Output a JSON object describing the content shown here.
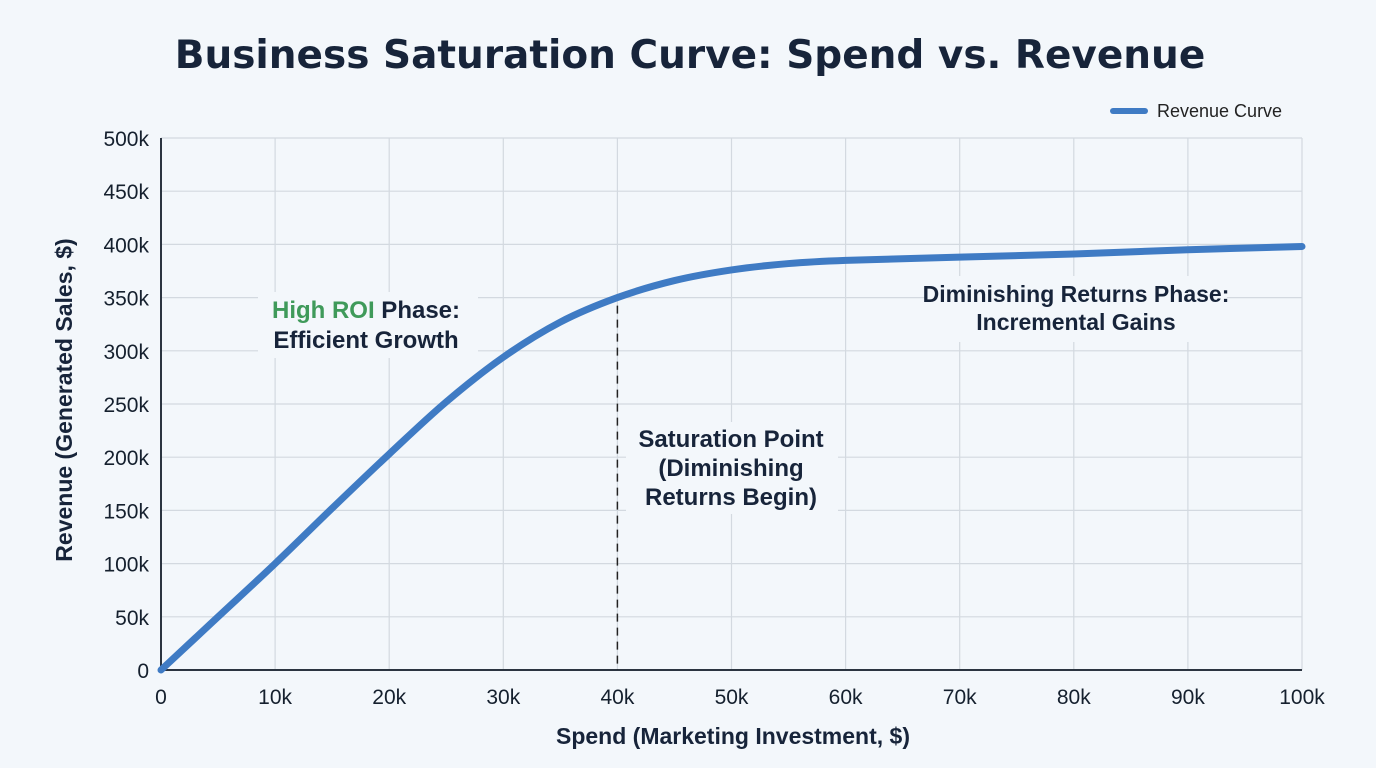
{
  "chart_data": {
    "type": "line",
    "title": "Business Saturation Curve: Spend vs. Revenue",
    "xlabel": "Spend (Marketing Investment, $)",
    "ylabel": "Revenue (Generated Sales, $)",
    "xlim": [
      0,
      100000
    ],
    "ylim": [
      0,
      500000
    ],
    "grid": true,
    "legend_position": "top-right",
    "x_ticks": [
      0,
      10000,
      20000,
      30000,
      40000,
      50000,
      60000,
      70000,
      80000,
      90000,
      100000
    ],
    "x_tick_labels": [
      "0",
      "10k",
      "20k",
      "30k",
      "40k",
      "50k",
      "60k",
      "70k",
      "80k",
      "90k",
      "100k"
    ],
    "y_ticks": [
      0,
      50000,
      100000,
      150000,
      200000,
      250000,
      300000,
      350000,
      400000,
      450000,
      500000
    ],
    "y_tick_labels": [
      "0",
      "50k",
      "100k",
      "150k",
      "200k",
      "250k",
      "300k",
      "350k",
      "400k",
      "450k",
      "500k"
    ],
    "series": [
      {
        "name": "Revenue Curve",
        "color": "#3f7bc4",
        "x": [
          0,
          5000,
          10000,
          15000,
          20000,
          25000,
          30000,
          35000,
          40000,
          45000,
          50000,
          55000,
          60000,
          70000,
          80000,
          90000,
          100000
        ],
        "y": [
          0,
          50000,
          100000,
          152000,
          203000,
          252000,
          294000,
          327000,
          350000,
          366000,
          376000,
          382000,
          385000,
          388000,
          391000,
          395000,
          398000
        ]
      }
    ],
    "annotations": {
      "saturation_x": 40000,
      "saturation_y": 350000,
      "high_roi_highlight": "High ROI",
      "high_roi_rest": " Phase:",
      "high_roi_line2": "Efficient Growth",
      "high_roi_color": "#3f9a5a",
      "saturation_lines": [
        "Saturation Point",
        "(Diminishing",
        "Returns Begin)"
      ],
      "diminishing_lines": [
        "Diminishing Returns Phase:",
        "Incremental Gains"
      ]
    }
  }
}
